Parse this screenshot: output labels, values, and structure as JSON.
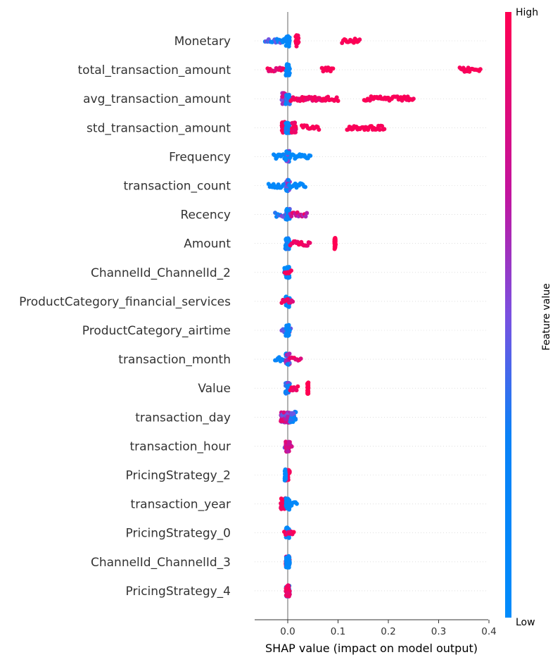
{
  "chart_data": {
    "type": "scatter",
    "subtype": "shap-beeswarm-summary",
    "xlabel": "SHAP value (impact on model output)",
    "xlim": [
      -0.065,
      0.4
    ],
    "xticks": [
      0.0,
      0.1,
      0.2,
      0.3,
      0.4
    ],
    "xtick_labels": [
      "0.0",
      "0.1",
      "0.2",
      "0.3",
      "0.4"
    ],
    "colorbar": {
      "label": "Feature value",
      "high_label": "High",
      "low_label": "Low",
      "low_color": "#008bfb",
      "high_color": "#ff0052"
    },
    "features": [
      {
        "name": "Monetary",
        "ranges": [
          {
            "from": -0.045,
            "to": -0.005,
            "lo": 0.0,
            "hi": 0.55
          },
          {
            "from": -0.004,
            "to": 0.004,
            "lo": 0.0,
            "hi": 0.2
          },
          {
            "from": 0.015,
            "to": 0.022,
            "lo": 0.95,
            "hi": 1.0
          },
          {
            "from": 0.108,
            "to": 0.143,
            "lo": 0.95,
            "hi": 1.0
          }
        ]
      },
      {
        "name": "total_transaction_amount",
        "ranges": [
          {
            "from": -0.04,
            "to": -0.006,
            "lo": 0.8,
            "hi": 1.0
          },
          {
            "from": -0.004,
            "to": 0.004,
            "lo": 0.0,
            "hi": 0.2
          },
          {
            "from": 0.068,
            "to": 0.09,
            "lo": 0.95,
            "hi": 1.0
          },
          {
            "from": 0.342,
            "to": 0.383,
            "lo": 0.95,
            "hi": 1.0
          }
        ]
      },
      {
        "name": "avg_transaction_amount",
        "ranges": [
          {
            "from": -0.012,
            "to": -0.004,
            "lo": 0.5,
            "hi": 0.8
          },
          {
            "from": -0.004,
            "to": 0.004,
            "lo": 0.0,
            "hi": 0.4
          },
          {
            "from": 0.006,
            "to": 0.07,
            "lo": 0.85,
            "hi": 1.0
          },
          {
            "from": 0.07,
            "to": 0.1,
            "lo": 0.95,
            "hi": 1.0
          },
          {
            "from": 0.152,
            "to": 0.25,
            "lo": 0.95,
            "hi": 1.0
          }
        ]
      },
      {
        "name": "std_transaction_amount",
        "ranges": [
          {
            "from": -0.012,
            "to": -0.004,
            "lo": 0.85,
            "hi": 1.0
          },
          {
            "from": -0.004,
            "to": 0.004,
            "lo": 0.0,
            "hi": 0.4
          },
          {
            "from": 0.008,
            "to": 0.017,
            "lo": 0.85,
            "hi": 1.0
          },
          {
            "from": 0.028,
            "to": 0.062,
            "lo": 0.95,
            "hi": 1.0
          },
          {
            "from": 0.118,
            "to": 0.192,
            "lo": 0.95,
            "hi": 1.0
          }
        ]
      },
      {
        "name": "Frequency",
        "ranges": [
          {
            "from": -0.028,
            "to": -0.004,
            "lo": 0.0,
            "hi": 0.2
          },
          {
            "from": -0.004,
            "to": 0.004,
            "lo": 0.0,
            "hi": 0.7
          },
          {
            "from": 0.005,
            "to": 0.045,
            "lo": 0.0,
            "hi": 0.15
          }
        ]
      },
      {
        "name": "transaction_count",
        "ranges": [
          {
            "from": -0.038,
            "to": -0.004,
            "lo": 0.0,
            "hi": 0.2
          },
          {
            "from": -0.004,
            "to": 0.004,
            "lo": 0.0,
            "hi": 0.7
          },
          {
            "from": 0.005,
            "to": 0.035,
            "lo": 0.0,
            "hi": 0.2
          }
        ]
      },
      {
        "name": "Recency",
        "ranges": [
          {
            "from": -0.025,
            "to": -0.004,
            "lo": 0.1,
            "hi": 0.6
          },
          {
            "from": -0.004,
            "to": 0.004,
            "lo": 0.0,
            "hi": 0.6
          },
          {
            "from": 0.005,
            "to": 0.038,
            "lo": 0.6,
            "hi": 1.0
          }
        ]
      },
      {
        "name": "Amount",
        "ranges": [
          {
            "from": -0.005,
            "to": 0.004,
            "lo": 0.0,
            "hi": 0.4
          },
          {
            "from": 0.005,
            "to": 0.044,
            "lo": 0.85,
            "hi": 1.0
          },
          {
            "from": 0.093,
            "to": 0.095,
            "lo": 1.0,
            "hi": 1.0
          }
        ]
      },
      {
        "name": "ChannelId_ChannelId_2",
        "ranges": [
          {
            "from": -0.007,
            "to": 0.004,
            "lo": 0.0,
            "hi": 0.15
          },
          {
            "from": -0.006,
            "to": 0.007,
            "lo": 0.95,
            "hi": 1.0
          }
        ]
      },
      {
        "name": "ProductCategory_financial_services",
        "ranges": [
          {
            "from": -0.004,
            "to": 0.004,
            "lo": 0.0,
            "hi": 0.15
          },
          {
            "from": -0.012,
            "to": 0.01,
            "lo": 0.8,
            "hi": 1.0
          }
        ]
      },
      {
        "name": "ProductCategory_airtime",
        "ranges": [
          {
            "from": -0.012,
            "to": 0.006,
            "lo": 0.4,
            "hi": 0.9
          },
          {
            "from": -0.004,
            "to": 0.004,
            "lo": 0.0,
            "hi": 0.2
          }
        ]
      },
      {
        "name": "transaction_month",
        "ranges": [
          {
            "from": -0.025,
            "to": -0.004,
            "lo": 0.0,
            "hi": 0.3
          },
          {
            "from": -0.004,
            "to": 0.004,
            "lo": 0.0,
            "hi": 0.8
          },
          {
            "from": 0.005,
            "to": 0.026,
            "lo": 0.7,
            "hi": 1.0
          }
        ]
      },
      {
        "name": "Value",
        "ranges": [
          {
            "from": -0.005,
            "to": 0.004,
            "lo": 0.0,
            "hi": 0.6
          },
          {
            "from": 0.005,
            "to": 0.02,
            "lo": 0.9,
            "hi": 1.0
          },
          {
            "from": 0.039,
            "to": 0.041,
            "lo": 1.0,
            "hi": 1.0
          }
        ]
      },
      {
        "name": "transaction_day",
        "ranges": [
          {
            "from": -0.014,
            "to": -0.004,
            "lo": 0.4,
            "hi": 1.0
          },
          {
            "from": -0.004,
            "to": 0.004,
            "lo": 0.2,
            "hi": 0.9
          },
          {
            "from": 0.005,
            "to": 0.016,
            "lo": 0.1,
            "hi": 0.5
          }
        ]
      },
      {
        "name": "transaction_hour",
        "ranges": [
          {
            "from": -0.006,
            "to": 0.008,
            "lo": 0.3,
            "hi": 0.85
          },
          {
            "from": -0.004,
            "to": 0.004,
            "lo": 0.6,
            "hi": 0.9
          }
        ]
      },
      {
        "name": "PricingStrategy_2",
        "ranges": [
          {
            "from": -0.005,
            "to": 0.004,
            "lo": 0.9,
            "hi": 1.0
          },
          {
            "from": -0.006,
            "to": -0.004,
            "lo": 0.0,
            "hi": 0.1
          }
        ]
      },
      {
        "name": "transaction_year",
        "ranges": [
          {
            "from": -0.014,
            "to": -0.004,
            "lo": 0.9,
            "hi": 1.0
          },
          {
            "from": -0.004,
            "to": 0.004,
            "lo": 0.0,
            "hi": 0.2
          },
          {
            "from": 0.005,
            "to": 0.018,
            "lo": 0.0,
            "hi": 0.15
          }
        ]
      },
      {
        "name": "PricingStrategy_0",
        "ranges": [
          {
            "from": -0.004,
            "to": 0.004,
            "lo": 0.0,
            "hi": 0.2
          },
          {
            "from": -0.007,
            "to": 0.012,
            "lo": 0.85,
            "hi": 1.0
          }
        ]
      },
      {
        "name": "ChannelId_ChannelId_3",
        "ranges": [
          {
            "from": -0.004,
            "to": 0.004,
            "lo": 0.75,
            "hi": 1.0
          },
          {
            "from": -0.004,
            "to": 0.004,
            "lo": 0.0,
            "hi": 0.2
          }
        ]
      },
      {
        "name": "PricingStrategy_4",
        "ranges": [
          {
            "from": -0.004,
            "to": 0.004,
            "lo": 0.0,
            "hi": 0.2
          },
          {
            "from": -0.004,
            "to": 0.004,
            "lo": 0.85,
            "hi": 1.0
          }
        ]
      }
    ]
  }
}
